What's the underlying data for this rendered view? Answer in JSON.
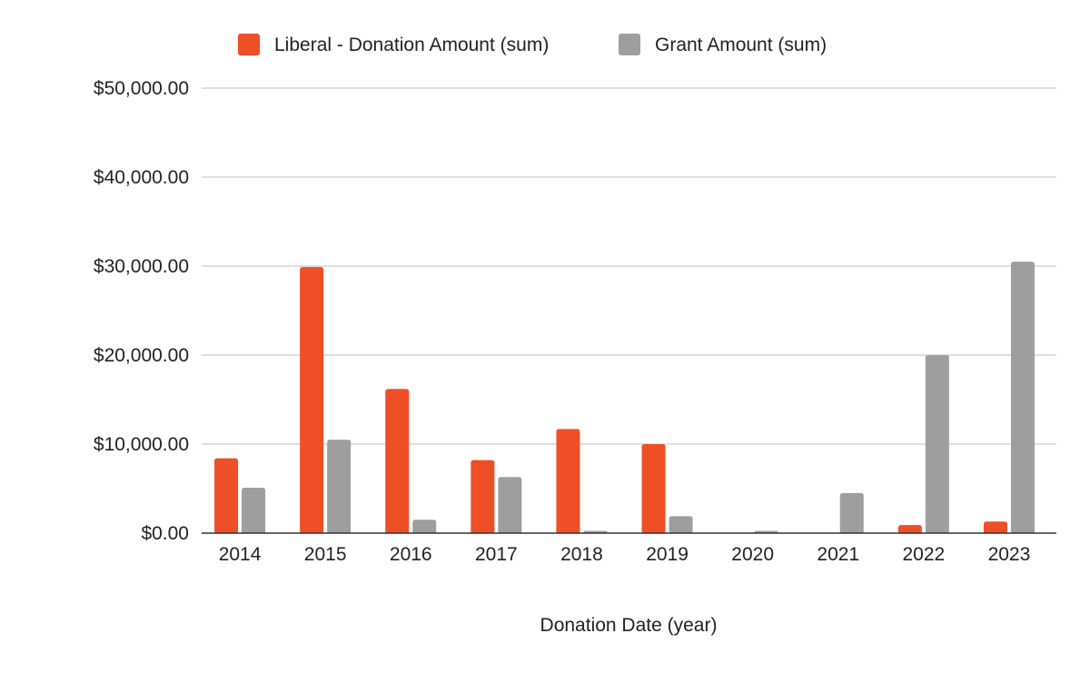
{
  "chart_data": {
    "type": "bar",
    "title": "",
    "xlabel": "Donation Date (year)",
    "ylabel": "",
    "categories": [
      "2014",
      "2015",
      "2016",
      "2017",
      "2018",
      "2019",
      "2020",
      "2021",
      "2022",
      "2023"
    ],
    "series": [
      {
        "name": "Liberal - Donation Amount (sum)",
        "color": "#ee4f26",
        "values": [
          8400,
          29900,
          16200,
          8200,
          11700,
          10000,
          0,
          0,
          900,
          1300
        ]
      },
      {
        "name": "Grant Amount (sum)",
        "color": "#9e9e9e",
        "values": [
          5100,
          10500,
          1500,
          6300,
          250,
          1900,
          250,
          4500,
          20000,
          30500
        ]
      }
    ],
    "ylim": [
      0,
      50000
    ],
    "yticks": [
      0,
      10000,
      20000,
      30000,
      40000,
      50000
    ],
    "ytick_labels": [
      "$0.00",
      "$10,000.00",
      "$20,000.00",
      "$30,000.00",
      "$40,000.00",
      "$50,000.00"
    ],
    "grid": true,
    "legend_position": "top"
  }
}
